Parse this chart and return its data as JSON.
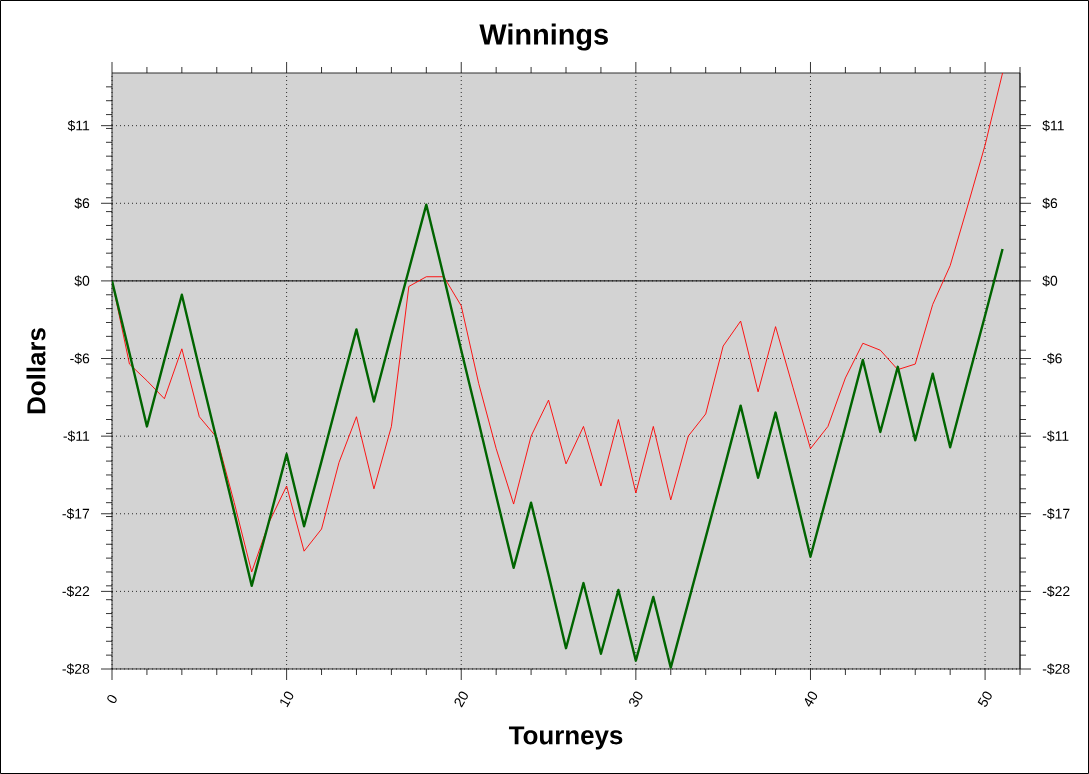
{
  "chart_data": {
    "type": "line",
    "title": "Winnings",
    "xlabel": "Tourneys",
    "ylabel": "Dollars",
    "x": [
      0,
      1,
      2,
      3,
      4,
      5,
      6,
      7,
      8,
      9,
      10,
      11,
      12,
      13,
      14,
      15,
      16,
      17,
      18,
      19,
      20,
      21,
      22,
      23,
      24,
      25,
      26,
      27,
      28,
      29,
      30,
      31,
      32,
      33,
      34,
      35,
      36,
      37,
      38,
      39,
      40,
      41,
      42,
      43,
      44,
      45,
      46,
      47,
      48,
      49,
      50,
      51
    ],
    "series": [
      {
        "color": "#ff0000",
        "values": [
          0,
          -6.0,
          -7.2,
          -8.5,
          -4.9,
          -9.8,
          -11.3,
          -16.0,
          -21.0,
          -17.4,
          -14.8,
          -19.5,
          -17.9,
          -13.1,
          -9.8,
          -15.0,
          -10.5,
          -0.4,
          0.3,
          0.3,
          -1.8,
          -7.4,
          -12.1,
          -16.1,
          -11.2,
          -8.6,
          -13.2,
          -10.5,
          -14.8,
          -10.0,
          -15.3,
          -10.5,
          -15.8,
          -11.2,
          -9.6,
          -4.7,
          -2.9,
          -8.0,
          -3.3,
          -7.7,
          -12.1,
          -10.5,
          -7.0,
          -4.5,
          -5.0,
          -6.4,
          -6.0,
          -1.7,
          1.1,
          5.4,
          9.8,
          15.0
        ]
      },
      {
        "color": "#006400",
        "values": [
          0,
          -5.2,
          -10.5,
          -5.7,
          -1.0,
          -6.3,
          -11.5,
          -16.7,
          -22.0,
          -17.3,
          -12.5,
          -17.7,
          -13.0,
          -8.2,
          -3.5,
          -8.7,
          -3.9,
          0.8,
          5.5,
          0.3,
          -5.0,
          -10.2,
          -15.5,
          -20.7,
          -16.0,
          -21.2,
          -26.5,
          -21.8,
          -26.9,
          -22.3,
          -27.4,
          -22.8,
          -27.9,
          -23.2,
          -18.5,
          -13.8,
          -9.0,
          -14.2,
          -9.5,
          -14.7,
          -19.9,
          -15.2,
          -10.5,
          -5.7,
          -10.9,
          -6.2,
          -11.5,
          -6.7,
          -12.0,
          -7.2,
          -2.5,
          2.3
        ]
      }
    ],
    "xlim": [
      0,
      52
    ],
    "ylim": [
      -28,
      15
    ],
    "y2lim": [
      -28,
      15
    ],
    "xticks": [
      0,
      {
        "value": 2,
        "label": null
      },
      {
        "value": 4,
        "label": null
      },
      {
        "value": 6,
        "label": null
      },
      {
        "value": 8,
        "label": null
      },
      10,
      {
        "value": 12,
        "label": null
      },
      {
        "value": 14,
        "label": null
      },
      {
        "value": 16,
        "label": null
      },
      {
        "value": 18,
        "label": null
      },
      20,
      {
        "value": 22,
        "label": null
      },
      {
        "value": 24,
        "label": null
      },
      {
        "value": 26,
        "label": null
      },
      {
        "value": 28,
        "label": null
      },
      30,
      {
        "value": 32,
        "label": null
      },
      {
        "value": 34,
        "label": null
      },
      {
        "value": 36,
        "label": null
      },
      {
        "value": 38,
        "label": null
      },
      40,
      {
        "value": 42,
        "label": null
      },
      {
        "value": 44,
        "label": null
      },
      {
        "value": 46,
        "label": null
      },
      {
        "value": 48,
        "label": null
      },
      50,
      {
        "value": 52,
        "label": null
      }
    ],
    "yticks": [
      {
        "value": -28,
        "label": "-$28"
      },
      {
        "value": -22.4,
        "label": "-$22"
      },
      {
        "value": -16.8,
        "label": "-$17"
      },
      {
        "value": -11.2,
        "label": "-$11"
      },
      {
        "value": -5.6,
        "label": "-$6"
      },
      {
        "value": 0,
        "label": "$0"
      },
      {
        "value": 5.6,
        "label": "$6"
      },
      {
        "value": 11.2,
        "label": "$11"
      },
      {
        "value": -27,
        "label": null
      },
      {
        "value": -26,
        "label": null
      },
      {
        "value": -25,
        "label": null
      },
      {
        "value": -24,
        "label": null
      },
      {
        "value": -23,
        "label": null
      },
      {
        "value": -22,
        "label": null
      },
      {
        "value": -21,
        "label": null
      },
      {
        "value": -20,
        "label": null
      },
      {
        "value": -19,
        "label": null
      },
      {
        "value": -18,
        "label": null
      },
      {
        "value": -17,
        "label": null
      },
      {
        "value": -16,
        "label": null
      },
      {
        "value": -15,
        "label": null
      },
      {
        "value": -14,
        "label": null
      },
      {
        "value": -13,
        "label": null
      },
      {
        "value": -12,
        "label": null
      },
      {
        "value": -11,
        "label": null
      },
      {
        "value": -10,
        "label": null
      },
      {
        "value": -9,
        "label": null
      },
      {
        "value": -8,
        "label": null
      },
      {
        "value": -7,
        "label": null
      },
      {
        "value": -6,
        "label": null
      },
      {
        "value": -5,
        "label": null
      },
      {
        "value": -4,
        "label": null
      },
      {
        "value": -3,
        "label": null
      },
      {
        "value": -2,
        "label": null
      },
      {
        "value": -1,
        "label": null
      },
      {
        "value": 1,
        "label": null
      },
      {
        "value": 2,
        "label": null
      },
      {
        "value": 3,
        "label": null
      },
      {
        "value": 4,
        "label": null
      },
      {
        "value": 5,
        "label": null
      },
      {
        "value": 6,
        "label": null
      },
      {
        "value": 7,
        "label": null
      },
      {
        "value": 8,
        "label": null
      },
      {
        "value": 9,
        "label": null
      },
      {
        "value": 10,
        "label": null
      },
      {
        "value": 11,
        "label": null
      },
      {
        "value": 12,
        "label": null
      },
      {
        "value": 13,
        "label": null
      },
      {
        "value": 14,
        "label": null
      }
    ],
    "y2ticks": [
      {
        "value": -28,
        "label": "-$28"
      },
      {
        "value": -22.4,
        "label": "-$22"
      },
      {
        "value": -16.8,
        "label": "-$17"
      },
      {
        "value": -11.2,
        "label": "-$11"
      },
      {
        "value": -5.6,
        "label": "-$6"
      },
      {
        "value": 0,
        "label": "$0"
      },
      {
        "value": 5.6,
        "label": "$6"
      },
      {
        "value": 11.2,
        "label": "$11"
      },
      {
        "value": -27,
        "label": null
      },
      {
        "value": -26,
        "label": null
      },
      {
        "value": -25,
        "label": null
      },
      {
        "value": -24,
        "label": null
      },
      {
        "value": -23,
        "label": null
      },
      {
        "value": -22,
        "label": null
      },
      {
        "value": -21,
        "label": null
      },
      {
        "value": -20,
        "label": null
      },
      {
        "value": -19,
        "label": null
      },
      {
        "value": -18,
        "label": null
      },
      {
        "value": -17,
        "label": null
      },
      {
        "value": -16,
        "label": null
      },
      {
        "value": -15,
        "label": null
      },
      {
        "value": -14,
        "label": null
      },
      {
        "value": -13,
        "label": null
      },
      {
        "value": -12,
        "label": null
      },
      {
        "value": -11,
        "label": null
      },
      {
        "value": -10,
        "label": null
      },
      {
        "value": -9,
        "label": null
      },
      {
        "value": -8,
        "label": null
      },
      {
        "value": -7,
        "label": null
      },
      {
        "value": -6,
        "label": null
      },
      {
        "value": -5,
        "label": null
      },
      {
        "value": -4,
        "label": null
      },
      {
        "value": -3,
        "label": null
      },
      {
        "value": -2,
        "label": null
      },
      {
        "value": -1,
        "label": null
      },
      {
        "value": 1,
        "label": null
      },
      {
        "value": 2,
        "label": null
      },
      {
        "value": 3,
        "label": null
      },
      {
        "value": 4,
        "label": null
      },
      {
        "value": 5,
        "label": null
      },
      {
        "value": 6,
        "label": null
      },
      {
        "value": 7,
        "label": null
      },
      {
        "value": 8,
        "label": null
      },
      {
        "value": 9,
        "label": null
      },
      {
        "value": 10,
        "label": null
      },
      {
        "value": 11,
        "label": null
      },
      {
        "value": 12,
        "label": null
      },
      {
        "value": 13,
        "label": null
      },
      {
        "value": 14,
        "label": null
      }
    ],
    "grid": true,
    "ref_lines": [
      {
        "axis": "y",
        "value": 0,
        "color": "#000000"
      }
    ]
  }
}
